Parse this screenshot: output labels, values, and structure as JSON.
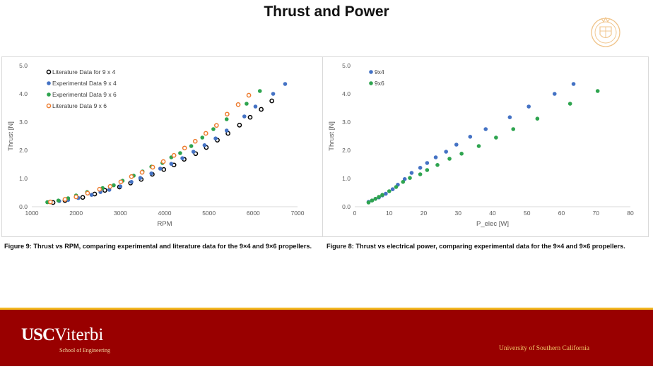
{
  "page": {
    "title": "Thrust and Power"
  },
  "captions": {
    "left": "Figure 9: Thrust vs RPM, comparing experimental and literature data for the 9×4 and 9×6 propellers.",
    "right": "Figure 8: Thrust vs electrical power, comparing experimental data for the 9×4 and 9×6 propellers."
  },
  "footer": {
    "brand_usc": "USC",
    "brand_viterbi": "Viterbi",
    "school": "School of Engineering",
    "university": "University of Southern California"
  },
  "colors": {
    "black": "#000000",
    "blue": "#4472c4",
    "green": "#2ea44f",
    "orange": "#ed7d31",
    "footer": "#990000",
    "footer_line": "#f2b71f"
  },
  "chart_data": [
    {
      "type": "scatter",
      "xlabel": "RPM",
      "ylabel": "Thrust [N]",
      "xlim": [
        1000,
        7000
      ],
      "ylim": [
        0,
        5
      ],
      "xticks": [
        "1000",
        "2000",
        "3000",
        "4000",
        "5000",
        "6000",
        "7000"
      ],
      "yticks": [
        "0.0",
        "1.0",
        "2.0",
        "3.0",
        "4.0",
        "5.0"
      ],
      "grid": false,
      "legend": "top-left",
      "series": [
        {
          "name": "Literature Data for 9 x 4",
          "marker": "open",
          "color": "#000000",
          "x": [
            1480,
            1750,
            2150,
            2420,
            2650,
            2980,
            3230,
            3470,
            3720,
            3980,
            4210,
            4440,
            4700,
            4940,
            5190,
            5430,
            5690,
            5930,
            6180,
            6420
          ],
          "y": [
            0.15,
            0.22,
            0.33,
            0.45,
            0.58,
            0.7,
            0.84,
            0.97,
            1.15,
            1.32,
            1.48,
            1.68,
            1.88,
            2.1,
            2.36,
            2.6,
            2.89,
            3.17,
            3.45,
            3.75
          ]
        },
        {
          "name": "Experimental Data 9 x 4",
          "marker": "filled",
          "color": "#4472c4",
          "x": [
            1400,
            1620,
            1820,
            2050,
            2350,
            2550,
            2750,
            3000,
            3250,
            3450,
            3700,
            3900,
            4150,
            4400,
            4650,
            4900,
            5150,
            5400,
            5800,
            6050,
            6450,
            6720
          ],
          "y": [
            0.17,
            0.2,
            0.24,
            0.31,
            0.42,
            0.52,
            0.6,
            0.72,
            0.88,
            1.02,
            1.18,
            1.35,
            1.52,
            1.72,
            1.95,
            2.18,
            2.42,
            2.7,
            3.2,
            3.55,
            4.0,
            4.35
          ]
        },
        {
          "name": "Experimental Data 9 x 6",
          "marker": "filled",
          "color": "#2ea44f",
          "x": [
            1350,
            1600,
            1820,
            2000,
            2250,
            2600,
            2850,
            3050,
            3300,
            3500,
            3700,
            3950,
            4150,
            4350,
            4600,
            4850,
            5100,
            5400,
            5850,
            6150
          ],
          "y": [
            0.16,
            0.22,
            0.3,
            0.4,
            0.52,
            0.66,
            0.76,
            0.92,
            1.1,
            1.25,
            1.42,
            1.55,
            1.75,
            1.9,
            2.15,
            2.45,
            2.75,
            3.1,
            3.65,
            4.1
          ]
        },
        {
          "name": "Literature Data 9 x 6",
          "marker": "open",
          "color": "#ed7d31",
          "x": [
            1420,
            1750,
            2000,
            2260,
            2530,
            2770,
            3010,
            3250,
            3490,
            3730,
            3970,
            4210,
            4450,
            4690,
            4930,
            5170,
            5410,
            5660,
            5900
          ],
          "y": [
            0.17,
            0.26,
            0.35,
            0.48,
            0.62,
            0.72,
            0.88,
            1.07,
            1.22,
            1.4,
            1.6,
            1.82,
            2.08,
            2.32,
            2.6,
            2.88,
            3.28,
            3.62,
            3.95
          ]
        }
      ]
    },
    {
      "type": "scatter",
      "xlabel": "P_elec [W]",
      "ylabel": "Thrust [N]",
      "xlim": [
        0,
        80
      ],
      "ylim": [
        0,
        5
      ],
      "xticks": [
        "0",
        "10",
        "20",
        "30",
        "40",
        "50",
        "60",
        "70",
        "80"
      ],
      "yticks": [
        "0.0",
        "1.0",
        "2.0",
        "3.0",
        "4.0",
        "5.0"
      ],
      "grid": false,
      "legend": "top-left",
      "series": [
        {
          "name": "9x4",
          "marker": "filled",
          "color": "#4472c4",
          "x": [
            4,
            5,
            6,
            7,
            8,
            9,
            11,
            12.5,
            14.5,
            16.5,
            19,
            21,
            23.5,
            26.5,
            29.5,
            33.5,
            38,
            45,
            50.5,
            58,
            63.5
          ],
          "y": [
            0.17,
            0.22,
            0.28,
            0.33,
            0.4,
            0.46,
            0.62,
            0.78,
            0.98,
            1.2,
            1.38,
            1.55,
            1.75,
            1.95,
            2.2,
            2.48,
            2.75,
            3.17,
            3.55,
            4.0,
            4.35
          ]
        },
        {
          "name": "9x6",
          "marker": "filled",
          "color": "#2ea44f",
          "x": [
            4,
            5,
            6,
            7,
            8,
            10,
            12,
            14,
            16,
            19,
            21,
            24,
            27.5,
            31,
            36,
            41,
            46,
            53,
            62.5,
            70.5
          ],
          "y": [
            0.15,
            0.22,
            0.28,
            0.35,
            0.42,
            0.55,
            0.7,
            0.88,
            1.02,
            1.15,
            1.3,
            1.48,
            1.7,
            1.88,
            2.15,
            2.45,
            2.75,
            3.12,
            3.65,
            4.1
          ]
        }
      ]
    }
  ]
}
